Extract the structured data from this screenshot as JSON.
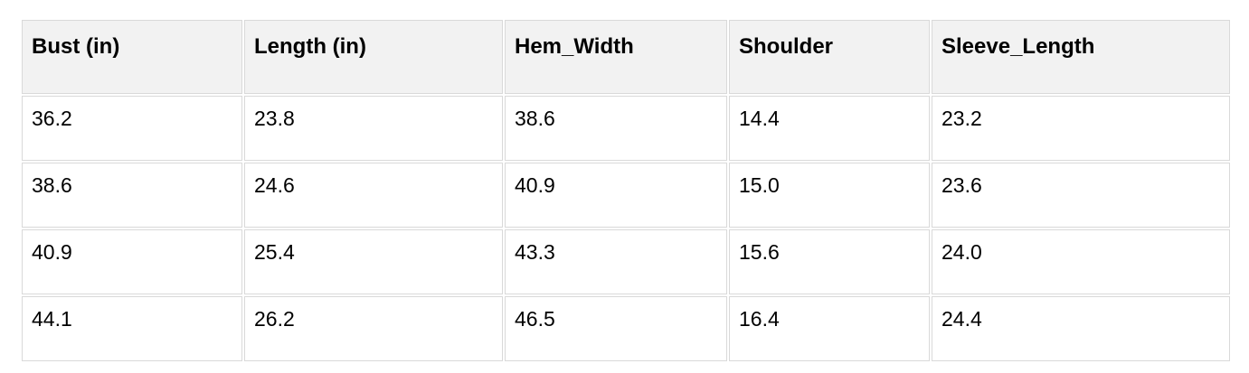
{
  "chart_data": {
    "type": "table",
    "title": "",
    "columns": [
      "Bust (in)",
      "Length (in)",
      "Hem_Width",
      "Shoulder",
      "Sleeve_Length"
    ],
    "rows": [
      [
        "36.2",
        "23.8",
        "38.6",
        "14.4",
        "23.2"
      ],
      [
        "38.6",
        "24.6",
        "40.9",
        "15.0",
        "23.6"
      ],
      [
        "40.9",
        "25.4",
        "43.3",
        "15.6",
        "24.0"
      ],
      [
        "44.1",
        "26.2",
        "46.5",
        "16.4",
        "24.4"
      ]
    ]
  },
  "colors": {
    "header_bg": "#f2f2f2",
    "border": "#d9d9d9",
    "text": "#000000",
    "page_bg": "#ffffff"
  }
}
